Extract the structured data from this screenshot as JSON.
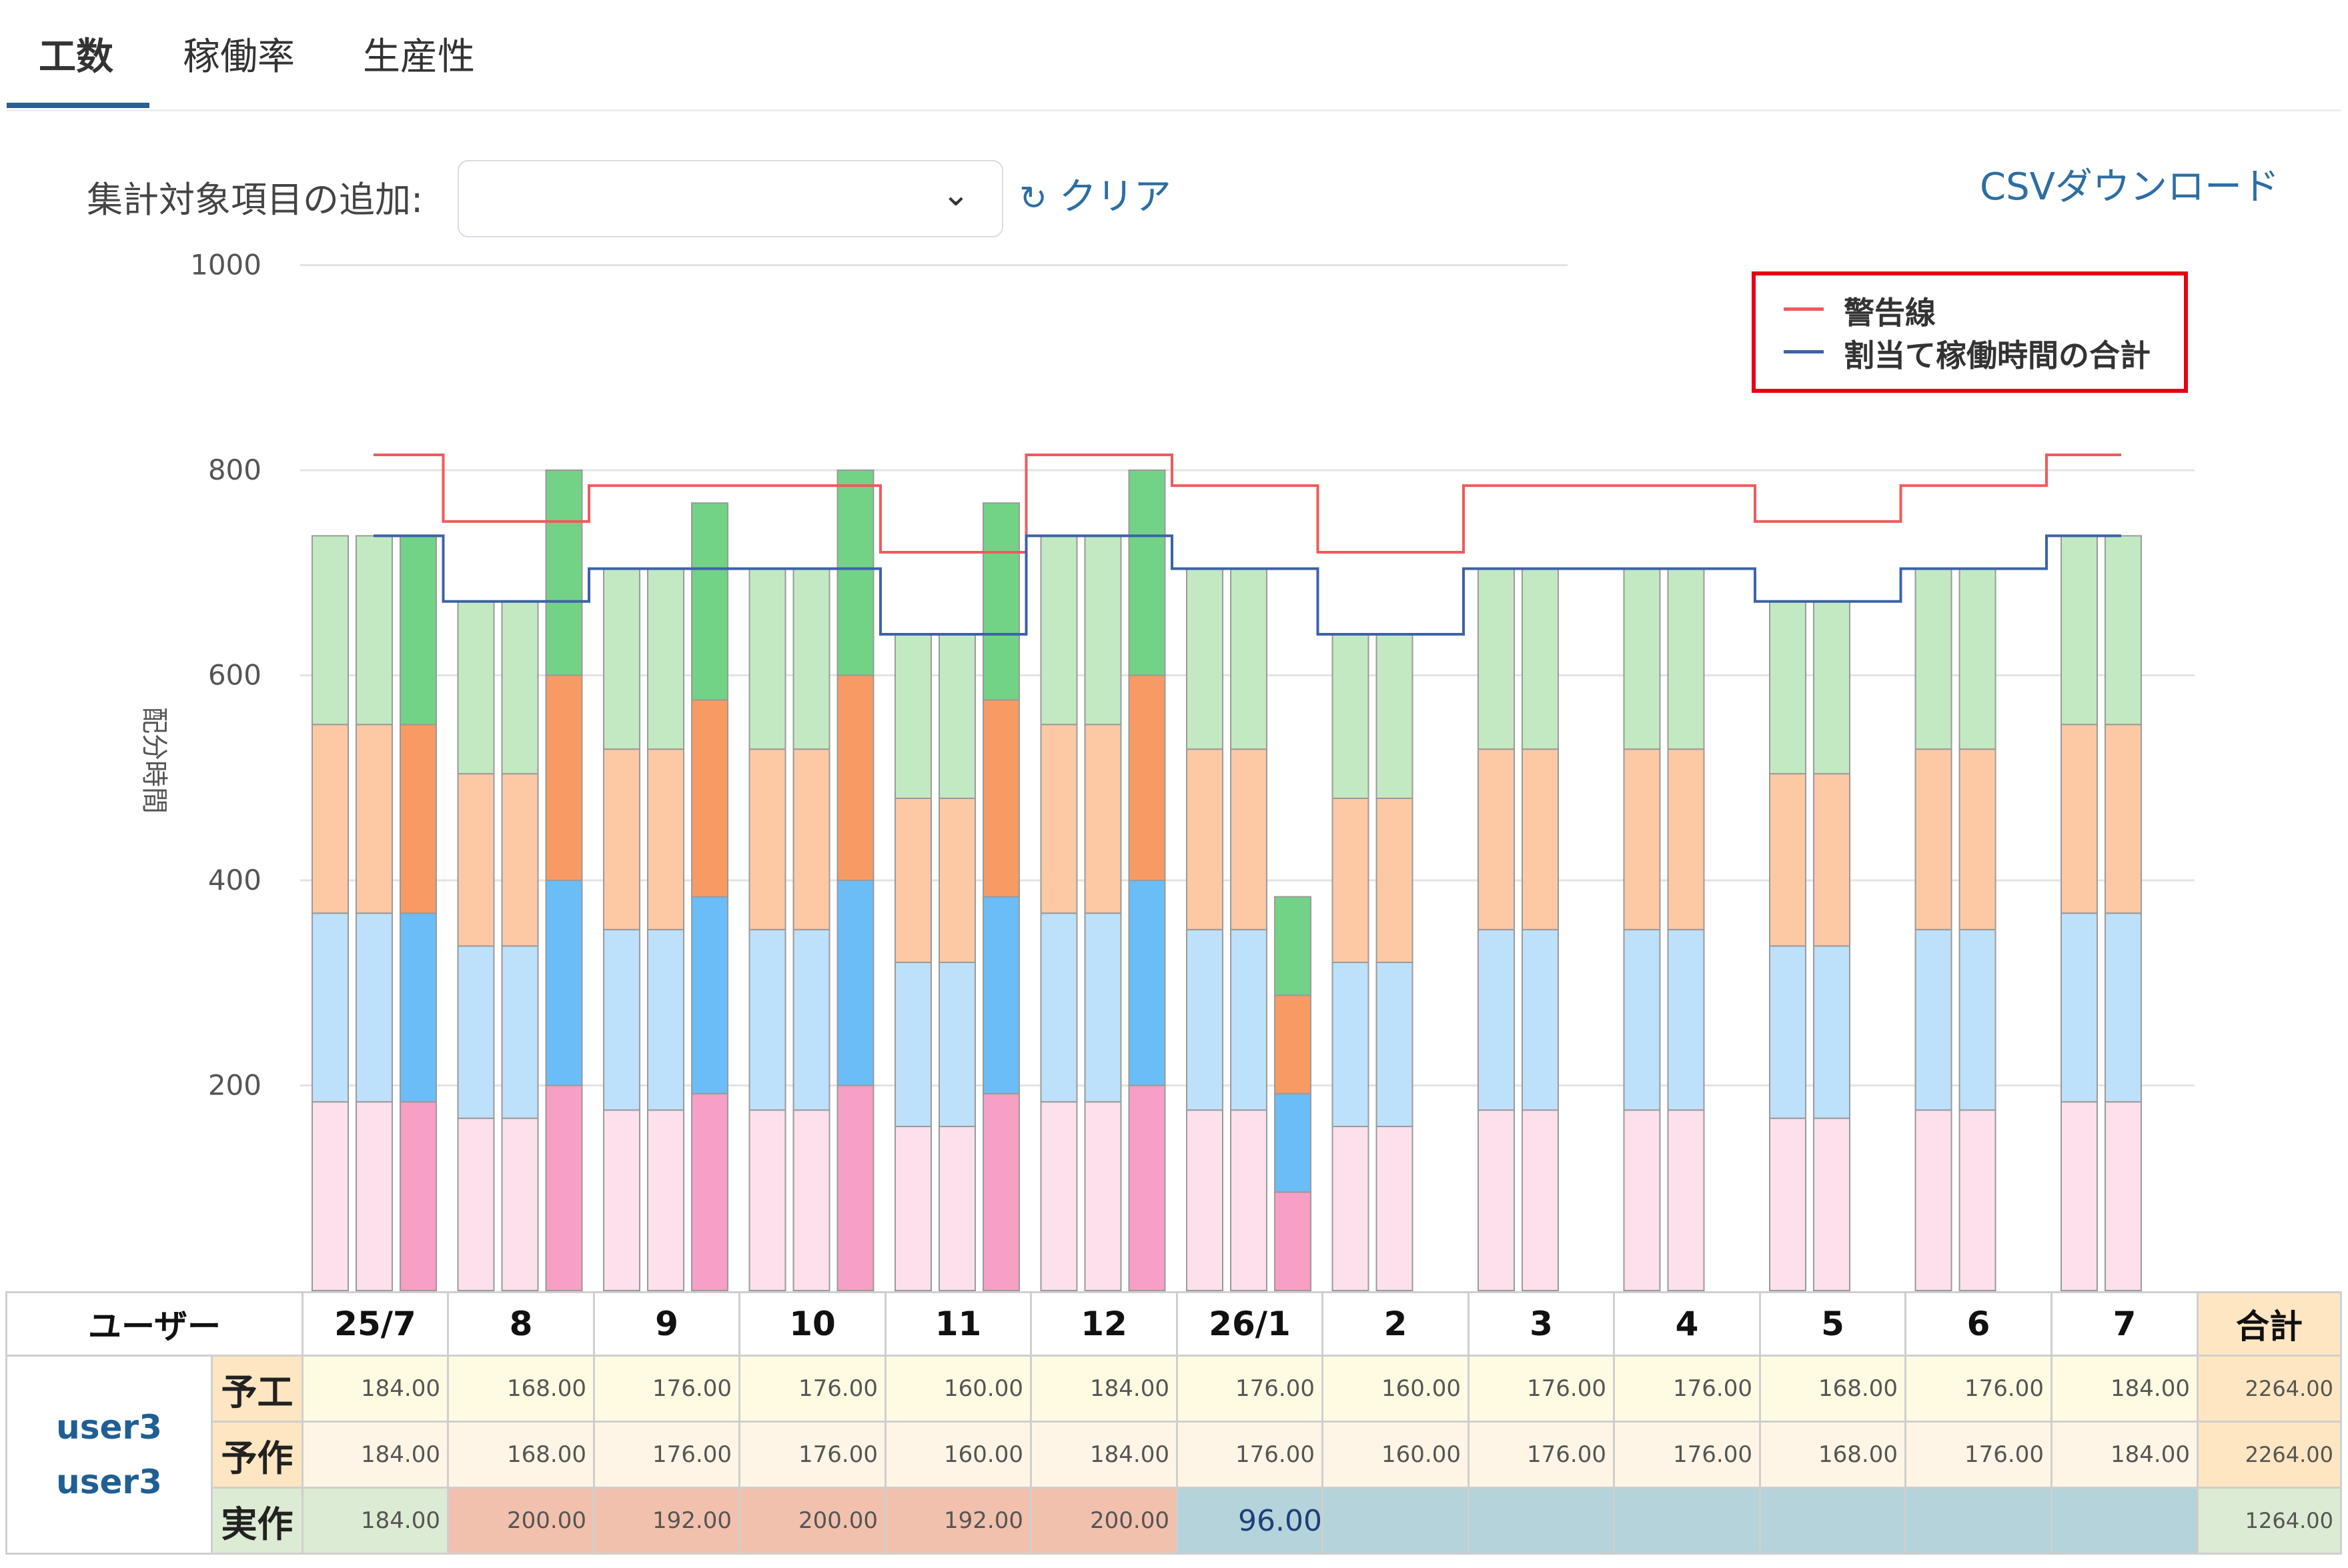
{
  "tabs": [
    {
      "label": "工数",
      "active": true
    },
    {
      "label": "稼働率",
      "active": false
    },
    {
      "label": "生産性",
      "active": false
    }
  ],
  "filter": {
    "label": "集計対象項目の追加:",
    "select_value": ""
  },
  "actions": {
    "clear_label": "クリア",
    "csv_label": "CSVダウンロード"
  },
  "legend": {
    "warning_label": "警告線",
    "allocation_label": "割当て稼働時間の合計"
  },
  "colors": {
    "warning_line": "#f05a5a",
    "allocation_line": "#3e62a8",
    "legend_highlight": "#e60012",
    "link": "#2d6ea3",
    "tab_active_underline": "#2a5f8f",
    "layer1_light": "#fce0ec",
    "layer1_dark": "#f79fc4",
    "layer2_light": "#bde0fb",
    "layer2_dark": "#6bbdf7",
    "layer3_light": "#fdc8a4",
    "layer3_dark": "#f79a64",
    "layer4_light": "#c3e9c3",
    "layer4_dark": "#72d387"
  },
  "chart_data": {
    "type": "bar",
    "stacked": true,
    "ylabel": "配分時間",
    "ylim": [
      0,
      1000
    ],
    "yticks": [
      200,
      400,
      600,
      800,
      1000
    ],
    "grid": true,
    "legend_position": "top-right",
    "categories": [
      "25/7",
      "8",
      "9",
      "10",
      "11",
      "12",
      "26/1",
      "2",
      "3",
      "4",
      "5",
      "6",
      "7"
    ],
    "bar_groups": [
      {
        "category": "25/7",
        "bars": [
          [
            184,
            184,
            184,
            184
          ],
          [
            184,
            184,
            184,
            184
          ],
          [
            184,
            184,
            184,
            184
          ]
        ]
      },
      {
        "category": "8",
        "bars": [
          [
            168,
            168,
            168,
            168
          ],
          [
            168,
            168,
            168,
            168
          ],
          [
            200,
            200,
            200,
            200
          ]
        ]
      },
      {
        "category": "9",
        "bars": [
          [
            176,
            176,
            176,
            176
          ],
          [
            176,
            176,
            176,
            176
          ],
          [
            192,
            192,
            192,
            192
          ]
        ]
      },
      {
        "category": "10",
        "bars": [
          [
            176,
            176,
            176,
            176
          ],
          [
            176,
            176,
            176,
            176
          ],
          [
            200,
            200,
            200,
            200
          ]
        ]
      },
      {
        "category": "11",
        "bars": [
          [
            160,
            160,
            160,
            160
          ],
          [
            160,
            160,
            160,
            160
          ],
          [
            192,
            192,
            192,
            192
          ]
        ]
      },
      {
        "category": "12",
        "bars": [
          [
            184,
            184,
            184,
            184
          ],
          [
            184,
            184,
            184,
            184
          ],
          [
            200,
            200,
            200,
            200
          ]
        ]
      },
      {
        "category": "26/1",
        "bars": [
          [
            176,
            176,
            176,
            176
          ],
          [
            176,
            176,
            176,
            176
          ],
          [
            96,
            96,
            96,
            96
          ]
        ]
      },
      {
        "category": "2",
        "bars": [
          [
            160,
            160,
            160,
            160
          ],
          [
            160,
            160,
            160,
            160
          ]
        ]
      },
      {
        "category": "3",
        "bars": [
          [
            176,
            176,
            176,
            176
          ],
          [
            176,
            176,
            176,
            176
          ]
        ]
      },
      {
        "category": "4",
        "bars": [
          [
            176,
            176,
            176,
            176
          ],
          [
            176,
            176,
            176,
            176
          ]
        ]
      },
      {
        "category": "5",
        "bars": [
          [
            168,
            168,
            168,
            168
          ],
          [
            168,
            168,
            168,
            168
          ]
        ]
      },
      {
        "category": "6",
        "bars": [
          [
            176,
            176,
            176,
            176
          ],
          [
            176,
            176,
            176,
            176
          ]
        ]
      },
      {
        "category": "7",
        "bars": [
          [
            184,
            184,
            184,
            184
          ],
          [
            184,
            184,
            184,
            184
          ]
        ]
      }
    ],
    "lines": [
      {
        "name": "警告線",
        "values": [
          815,
          750,
          785,
          785,
          720,
          815,
          785,
          720,
          785,
          785,
          750,
          785,
          815
        ]
      },
      {
        "name": "割当て稼働時間の合計",
        "values": [
          736,
          672,
          704,
          704,
          640,
          736,
          704,
          640,
          704,
          704,
          672,
          704,
          736
        ]
      }
    ]
  },
  "table": {
    "user_header": "ユーザー",
    "total_header": "合計",
    "user_names": [
      "user3",
      "user3"
    ],
    "rows": [
      {
        "label": "予工",
        "values": [
          "184.00",
          "168.00",
          "176.00",
          "176.00",
          "160.00",
          "184.00",
          "176.00",
          "160.00",
          "176.00",
          "176.00",
          "168.00",
          "176.00",
          "184.00"
        ],
        "total": "2264.00"
      },
      {
        "label": "予作",
        "values": [
          "184.00",
          "168.00",
          "176.00",
          "176.00",
          "160.00",
          "184.00",
          "176.00",
          "160.00",
          "176.00",
          "176.00",
          "168.00",
          "176.00",
          "184.00"
        ],
        "total": "2264.00"
      },
      {
        "label": "実作",
        "values": [
          "184.00",
          "200.00",
          "192.00",
          "200.00",
          "192.00",
          "200.00",
          "96.00",
          "",
          "",
          "",
          "",
          "",
          ""
        ],
        "total": "1264.00"
      }
    ]
  }
}
